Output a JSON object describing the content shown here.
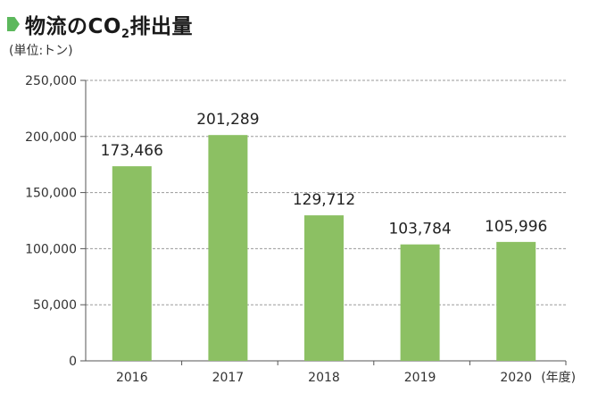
{
  "header": {
    "title_main": "物流のCO",
    "title_sub": "2",
    "title_tail": "排出量",
    "unit": "(単位:トン)"
  },
  "colors": {
    "bar": "#8cc063",
    "marker": "#5cb85c",
    "grid": "#9a9a9a",
    "axis": "#555555"
  },
  "chart_data": {
    "type": "bar",
    "title": "物流のCO2排出量",
    "ylabel": "(単位:トン)",
    "xlabel": "(年度)",
    "categories": [
      "2016",
      "2017",
      "2018",
      "2019",
      "2020"
    ],
    "values": [
      173466,
      201289,
      129712,
      103784,
      105996
    ],
    "data_labels": [
      "173,466",
      "201,289",
      "129,712",
      "103,784",
      "105,996"
    ],
    "ylim": [
      0,
      250000
    ],
    "yticks": [
      0,
      50000,
      100000,
      150000,
      200000,
      250000
    ],
    "ytick_labels": [
      "0",
      "50,000",
      "100,000",
      "150,000",
      "200,000",
      "250,000"
    ],
    "grid": true,
    "legend": "none"
  }
}
